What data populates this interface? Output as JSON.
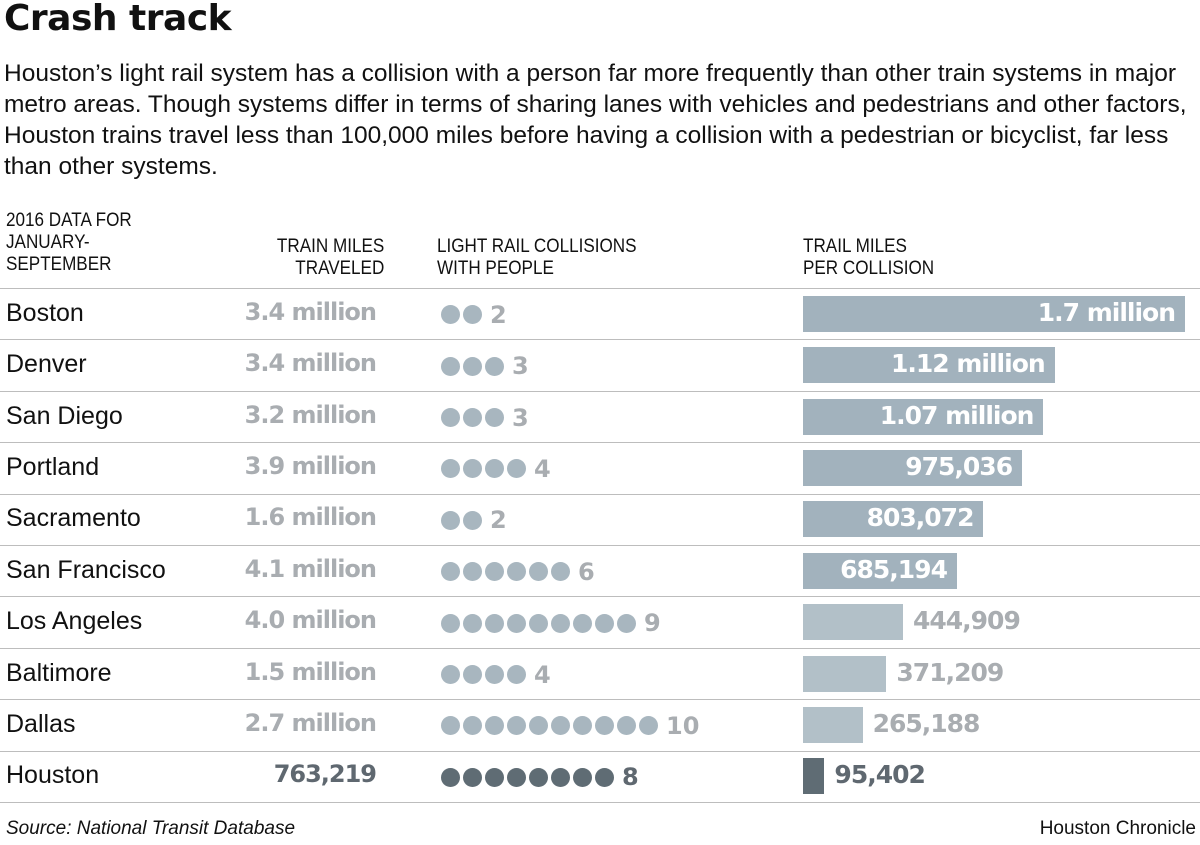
{
  "title": "Crash track",
  "intro": "Houston’s light rail system has a collision with a person far more frequently than other train systems in major metro areas. Though systems differ in terms of sharing lanes with vehicles and pedestrians and other factors, Houston trains travel less than 100,000 miles before having a collision with a pedestrian or bicyclist, far less than other systems.",
  "headers": {
    "period": [
      "2016 DATA FOR",
      "JANUARY-",
      "SEPTEMBER"
    ],
    "miles": [
      "TRAIN MILES",
      "TRAVELED"
    ],
    "collisions": [
      "LIGHT RAIL COLLISIONS",
      "WITH PEOPLE"
    ],
    "per": [
      "TRAIL MILES",
      "PER COLLISION"
    ]
  },
  "source": "Source: National Transit Database",
  "credit": "Houston Chronicle",
  "colors": {
    "bar": "#a2b2bd",
    "bar_highlight": "#5f6c74",
    "dot": "#a8b6bf",
    "dot_highlight": "#5f6c74",
    "muted_text": "#a9adb1",
    "highlight_text": "#5f6870"
  },
  "chart_data": {
    "type": "table",
    "columns": [
      "TRAIN MILES TRAVELED",
      "LIGHT RAIL COLLISIONS WITH PEOPLE",
      "TRAIL MILES PER COLLISION"
    ],
    "rows": [
      {
        "city": "Boston",
        "miles_label": "3.4 million",
        "collisions": 2,
        "per_label": "1.7 million",
        "per_value": 1700000
      },
      {
        "city": "Denver",
        "miles_label": "3.4 million",
        "collisions": 3,
        "per_label": "1.12 million",
        "per_value": 1120000
      },
      {
        "city": "San Diego",
        "miles_label": "3.2 million",
        "collisions": 3,
        "per_label": "1.07 million",
        "per_value": 1070000
      },
      {
        "city": "Portland",
        "miles_label": "3.9 million",
        "collisions": 4,
        "per_label": "975,036",
        "per_value": 975036
      },
      {
        "city": "Sacramento",
        "miles_label": "1.6 million",
        "collisions": 2,
        "per_label": "803,072",
        "per_value": 803072
      },
      {
        "city": "San Francisco",
        "miles_label": "4.1 million",
        "collisions": 6,
        "per_label": "685,194",
        "per_value": 685194
      },
      {
        "city": "Los Angeles",
        "miles_label": "4.0 million",
        "collisions": 9,
        "per_label": "444,909",
        "per_value": 444909
      },
      {
        "city": "Baltimore",
        "miles_label": "1.5 million",
        "collisions": 4,
        "per_label": "371,209",
        "per_value": 371209
      },
      {
        "city": "Dallas",
        "miles_label": "2.7 million",
        "collisions": 10,
        "per_label": "265,188",
        "per_value": 265188
      },
      {
        "city": "Houston",
        "miles_label": "763,219",
        "collisions": 8,
        "per_label": "95,402",
        "per_value": 95402,
        "highlight": true
      }
    ],
    "bar_scale_max": 1700000
  }
}
